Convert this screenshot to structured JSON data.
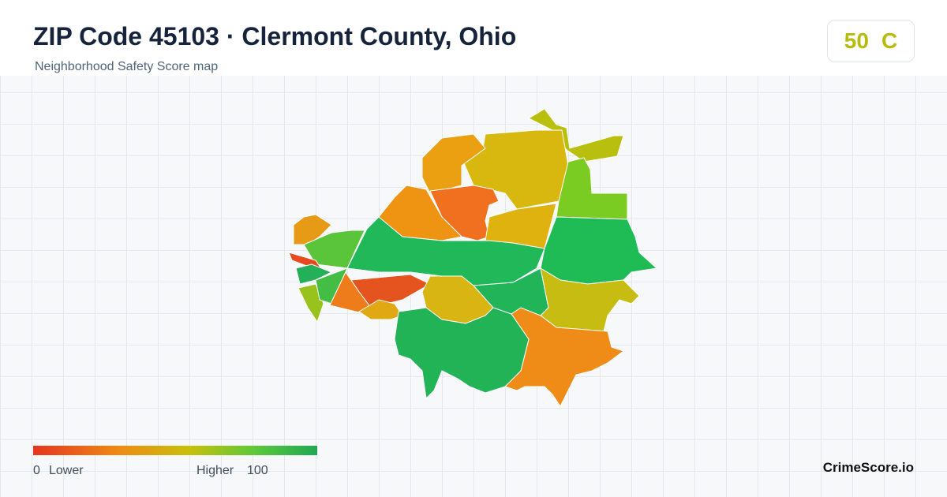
{
  "header": {
    "title": "ZIP Code 45103 · Clermont County, Ohio",
    "subtitle": "Neighborhood Safety Score map",
    "score": 50,
    "grade": "C"
  },
  "legend": {
    "min": 0,
    "min_label": "Lower",
    "max_label": "Higher",
    "max": 100
  },
  "footer": {
    "brand": "CrimeScore.io"
  }
}
